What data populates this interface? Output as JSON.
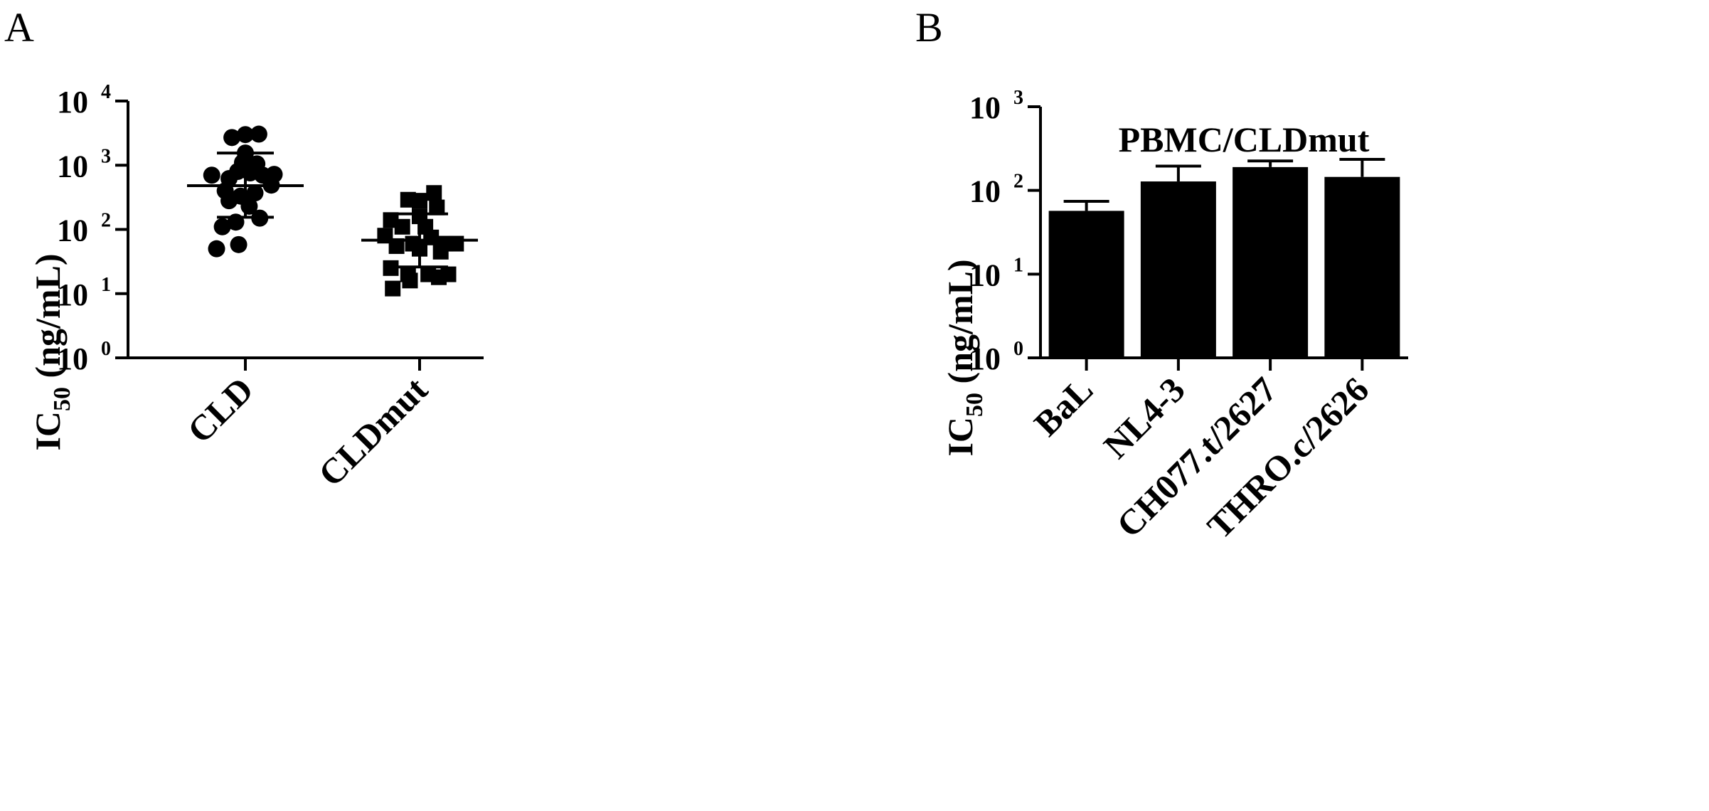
{
  "panels": {
    "a_letter": "A",
    "b_letter": "B"
  },
  "chart_data": [
    {
      "type": "scatter",
      "panel": "A",
      "title": "",
      "ylabel_main": "IC",
      "ylabel_sub": "50",
      "ylabel_rest": " (ng/mL)",
      "yscale": "log",
      "ylim": [
        1,
        10000
      ],
      "yticks": [
        {
          "base": "10",
          "exp": "0",
          "value": 1
        },
        {
          "base": "10",
          "exp": "1",
          "value": 10
        },
        {
          "base": "10",
          "exp": "2",
          "value": 100
        },
        {
          "base": "10",
          "exp": "3",
          "value": 1000
        },
        {
          "base": "10",
          "exp": "4",
          "value": 10000
        }
      ],
      "categories": [
        "CLD",
        "CLDmut"
      ],
      "series": [
        {
          "category": "CLD",
          "marker": "circle",
          "color": "#000000",
          "mean": 480,
          "sd_low": 155,
          "sd_high": 1550,
          "points": [
            {
              "dx": -0.35,
              "y": 700
            },
            {
              "dx": -0.17,
              "y": 620
            },
            {
              "dx": 0.0,
              "y": 3000
            },
            {
              "dx": 0.14,
              "y": 3050
            },
            {
              "dx": -0.14,
              "y": 2700
            },
            {
              "dx": 0.0,
              "y": 1550
            },
            {
              "dx": -0.03,
              "y": 1100
            },
            {
              "dx": 0.12,
              "y": 1050
            },
            {
              "dx": -0.08,
              "y": 800
            },
            {
              "dx": 0.05,
              "y": 760
            },
            {
              "dx": 0.18,
              "y": 700
            },
            {
              "dx": 0.3,
              "y": 720
            },
            {
              "dx": 0.27,
              "y": 490
            },
            {
              "dx": -0.21,
              "y": 400
            },
            {
              "dx": 0.1,
              "y": 370
            },
            {
              "dx": -0.05,
              "y": 330
            },
            {
              "dx": 0.04,
              "y": 230
            },
            {
              "dx": -0.17,
              "y": 280
            },
            {
              "dx": -0.24,
              "y": 110
            },
            {
              "dx": 0.15,
              "y": 150
            },
            {
              "dx": -0.1,
              "y": 130
            },
            {
              "dx": -0.07,
              "y": 58
            },
            {
              "dx": -0.3,
              "y": 50
            }
          ]
        },
        {
          "category": "CLDmut",
          "marker": "square",
          "color": "#000000",
          "mean": 68,
          "sd_low": 26,
          "sd_high": 175,
          "points": [
            {
              "dx": -0.12,
              "y": 290
            },
            {
              "dx": 0.0,
              "y": 280
            },
            {
              "dx": 0.15,
              "y": 370
            },
            {
              "dx": -0.3,
              "y": 140
            },
            {
              "dx": 0.18,
              "y": 220
            },
            {
              "dx": 0.0,
              "y": 160
            },
            {
              "dx": -0.18,
              "y": 110
            },
            {
              "dx": 0.06,
              "y": 110
            },
            {
              "dx": -0.36,
              "y": 80
            },
            {
              "dx": 0.12,
              "y": 75
            },
            {
              "dx": -0.07,
              "y": 60
            },
            {
              "dx": 0.27,
              "y": 60
            },
            {
              "dx": 0.38,
              "y": 60
            },
            {
              "dx": -0.24,
              "y": 55
            },
            {
              "dx": 0.0,
              "y": 50
            },
            {
              "dx": 0.22,
              "y": 45
            },
            {
              "dx": -0.3,
              "y": 25
            },
            {
              "dx": -0.12,
              "y": 20
            },
            {
              "dx": 0.09,
              "y": 20
            },
            {
              "dx": 0.2,
              "y": 18
            },
            {
              "dx": 0.3,
              "y": 20
            },
            {
              "dx": -0.1,
              "y": 16
            },
            {
              "dx": -0.28,
              "y": 12
            }
          ]
        }
      ]
    },
    {
      "type": "bar",
      "panel": "B",
      "title": "PBMC/CLDmut",
      "ylabel_main": "IC",
      "ylabel_sub": "50",
      "ylabel_rest": " (ng/mL)",
      "yscale": "log",
      "ylim": [
        1,
        1000
      ],
      "yticks": [
        {
          "base": "10",
          "exp": "0",
          "value": 1
        },
        {
          "base": "10",
          "exp": "1",
          "value": 10
        },
        {
          "base": "10",
          "exp": "2",
          "value": 100
        },
        {
          "base": "10",
          "exp": "3",
          "value": 1000
        }
      ],
      "categories": [
        "BaL",
        "NL4-3",
        "CH077.t/2627",
        "THRO.c/2626"
      ],
      "values": [
        57,
        128,
        190,
        145
      ],
      "error_high": [
        74,
        195,
        225,
        235
      ],
      "bar_color": "#000000"
    }
  ]
}
